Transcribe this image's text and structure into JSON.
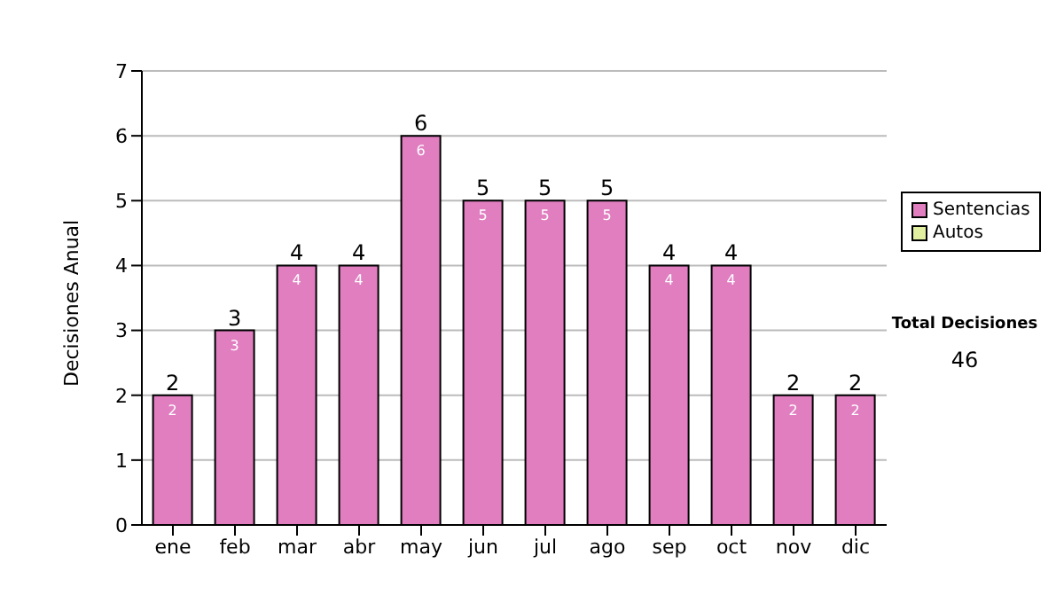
{
  "chart_data": {
    "type": "bar",
    "ylabel": "Decisiones Anual",
    "categories": [
      "ene",
      "feb",
      "mar",
      "abr",
      "may",
      "jun",
      "jul",
      "ago",
      "sep",
      "oct",
      "nov",
      "dic"
    ],
    "series": [
      {
        "name": "Sentencias",
        "color": "#e07ec0",
        "values": [
          2,
          3,
          4,
          4,
          6,
          5,
          5,
          5,
          4,
          4,
          2,
          2
        ],
        "value_labels": [
          "2",
          "3",
          "4",
          "4",
          "6",
          "5",
          "5",
          "5",
          "4",
          "4",
          "2",
          "2"
        ]
      },
      {
        "name": "Autos",
        "color": "#e0f0a0",
        "values": [
          0,
          0,
          0,
          0,
          0,
          0,
          0,
          0,
          0,
          0,
          0,
          0
        ]
      }
    ],
    "stacked": true,
    "totals": [
      "2",
      "3",
      "4",
      "4",
      "6",
      "5",
      "5",
      "5",
      "4",
      "4",
      "2",
      "2"
    ],
    "ylim": [
      0,
      7
    ],
    "yticks": [
      0,
      1,
      2,
      3,
      4,
      5,
      6,
      7
    ],
    "grid": "y",
    "legend": "right",
    "annotations": [
      "Total Decisiones",
      "46"
    ]
  }
}
